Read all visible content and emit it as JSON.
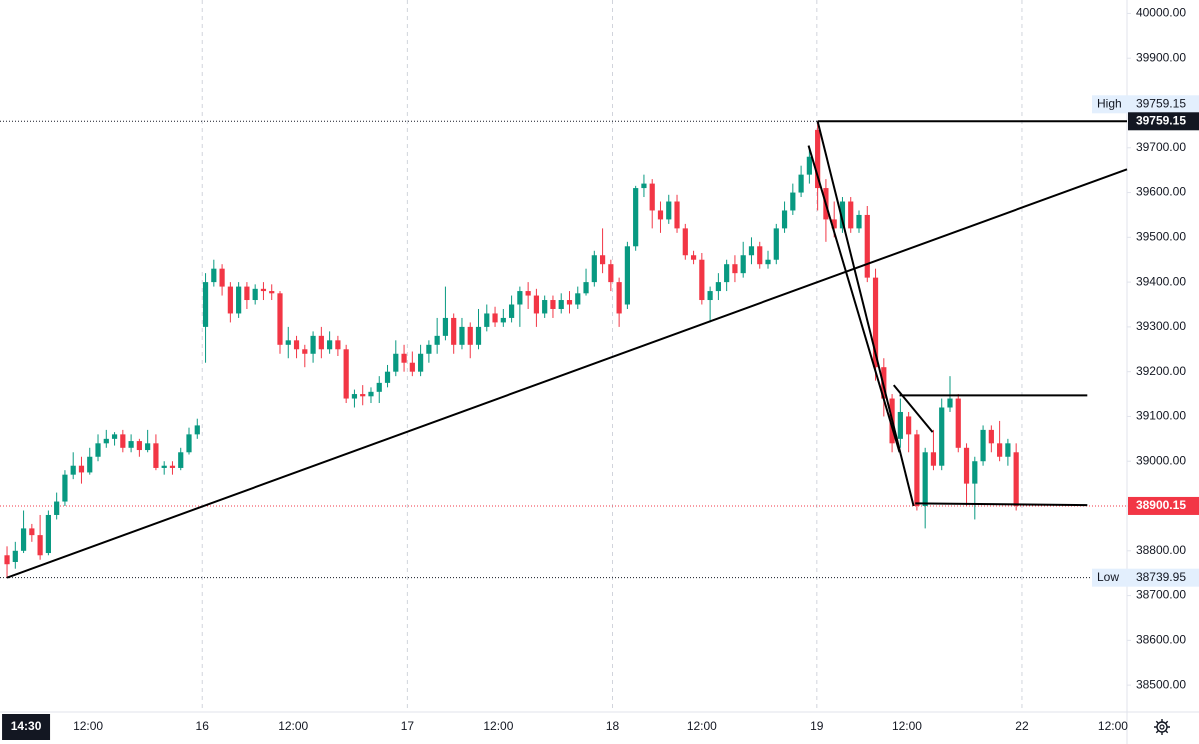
{
  "chart_data": {
    "type": "candlestick",
    "up_color": "#089981",
    "down_color": "#f23645",
    "xlim": [
      -0.85,
      135.4
    ],
    "ylim": [
      38440,
      40030
    ],
    "xticks": [
      {
        "value": 2.3,
        "label": "14:30"
      },
      {
        "value": 9.8,
        "label": "12:00"
      },
      {
        "value": 23.6,
        "label": "16"
      },
      {
        "value": 34.6,
        "label": "12:00"
      },
      {
        "value": 48.4,
        "label": "17"
      },
      {
        "value": 59.4,
        "label": "12:00"
      },
      {
        "value": 73.2,
        "label": "18"
      },
      {
        "value": 84.0,
        "label": "12:00"
      },
      {
        "value": 97.9,
        "label": "19"
      },
      {
        "value": 108.8,
        "label": "12:00"
      },
      {
        "value": 122.7,
        "label": "22"
      },
      {
        "value": 133.7,
        "label": "12:00"
      }
    ],
    "yticks": [
      {
        "value": 38500,
        "label": "38500.00"
      },
      {
        "value": 38600,
        "label": "38600.00"
      },
      {
        "value": 38700,
        "label": "38700.00"
      },
      {
        "value": 38800,
        "label": "38800.00"
      },
      {
        "value": 38900,
        "label": "38900.00"
      },
      {
        "value": 39000,
        "label": "39000.00"
      },
      {
        "value": 39100,
        "label": "39100.00"
      },
      {
        "value": 39200,
        "label": "39200.00"
      },
      {
        "value": 39300,
        "label": "39300.00"
      },
      {
        "value": 39400,
        "label": "39400.00"
      },
      {
        "value": 39500,
        "label": "39500.00"
      },
      {
        "value": 39600,
        "label": "39600.00"
      },
      {
        "value": 39700,
        "label": "39700.00"
      },
      {
        "value": 39800,
        "label": "39800.00"
      },
      {
        "value": 39900,
        "label": "39900.00"
      },
      {
        "value": 40000,
        "label": "40000.00"
      }
    ],
    "high": {
      "label": "High",
      "value": 39759.15
    },
    "low": {
      "label": "Low",
      "value": 38739.95
    },
    "last_price": 38900.15,
    "ohlc": [
      [
        38790,
        38810,
        38739.95,
        38770
      ],
      [
        38775,
        38820,
        38760,
        38800
      ],
      [
        38800,
        38890,
        38795,
        38850
      ],
      [
        38850,
        38860,
        38820,
        38835
      ],
      [
        38835,
        38880,
        38780,
        38790
      ],
      [
        38795,
        38890,
        38790,
        38880
      ],
      [
        38880,
        38930,
        38870,
        38910
      ],
      [
        38910,
        38980,
        38900,
        38970
      ],
      [
        38970,
        39020,
        38960,
        38990
      ],
      [
        38990,
        39010,
        38950,
        38975
      ],
      [
        38975,
        39030,
        38970,
        39010
      ],
      [
        39010,
        39060,
        39000,
        39040
      ],
      [
        39040,
        39070,
        39030,
        39050
      ],
      [
        39050,
        39065,
        39035,
        39060
      ],
      [
        39060,
        39070,
        39020,
        39030
      ],
      [
        39030,
        39060,
        39020,
        39045
      ],
      [
        39045,
        39050,
        39010,
        39025
      ],
      [
        39025,
        39070,
        39020,
        39040
      ],
      [
        39040,
        39060,
        38980,
        38985
      ],
      [
        38985,
        39000,
        38970,
        38990
      ],
      [
        38990,
        39000,
        38970,
        38985
      ],
      [
        38985,
        39030,
        38980,
        39020
      ],
      [
        39020,
        39075,
        39015,
        39060
      ],
      [
        39060,
        39095,
        39050,
        39080
      ],
      [
        39300,
        39420,
        39220,
        39400
      ],
      [
        39400,
        39450,
        39390,
        39430
      ],
      [
        39430,
        39440,
        39370,
        39390
      ],
      [
        39390,
        39400,
        39310,
        39330
      ],
      [
        39330,
        39400,
        39320,
        39390
      ],
      [
        39390,
        39400,
        39340,
        39360
      ],
      [
        39360,
        39395,
        39350,
        39385
      ],
      [
        39385,
        39400,
        39360,
        39380
      ],
      [
        39380,
        39395,
        39360,
        39375
      ],
      [
        39375,
        39380,
        39240,
        39260
      ],
      [
        39260,
        39300,
        39230,
        39270
      ],
      [
        39270,
        39280,
        39230,
        39250
      ],
      [
        39250,
        39260,
        39210,
        39240
      ],
      [
        39240,
        39290,
        39220,
        39280
      ],
      [
        39280,
        39300,
        39230,
        39250
      ],
      [
        39250,
        39290,
        39240,
        39270
      ],
      [
        39270,
        39280,
        39235,
        39250
      ],
      [
        39250,
        39260,
        39130,
        39140
      ],
      [
        39140,
        39160,
        39120,
        39150
      ],
      [
        39150,
        39170,
        39125,
        39145
      ],
      [
        39145,
        39165,
        39130,
        39155
      ],
      [
        39155,
        39190,
        39130,
        39175
      ],
      [
        39175,
        39215,
        39165,
        39200
      ],
      [
        39200,
        39270,
        39190,
        39240
      ],
      [
        39240,
        39260,
        39200,
        39220
      ],
      [
        39220,
        39245,
        39190,
        39200
      ],
      [
        39200,
        39260,
        39190,
        39240
      ],
      [
        39240,
        39270,
        39220,
        39260
      ],
      [
        39260,
        39320,
        39240,
        39280
      ],
      [
        39280,
        39390,
        39270,
        39320
      ],
      [
        39320,
        39330,
        39240,
        39260
      ],
      [
        39260,
        39320,
        39250,
        39300
      ],
      [
        39300,
        39310,
        39230,
        39260
      ],
      [
        39260,
        39340,
        39250,
        39300
      ],
      [
        39300,
        39350,
        39290,
        39330
      ],
      [
        39330,
        39345,
        39300,
        39310
      ],
      [
        39310,
        39340,
        39300,
        39320
      ],
      [
        39320,
        39370,
        39310,
        39350
      ],
      [
        39350,
        39390,
        39300,
        39380
      ],
      [
        39380,
        39400,
        39340,
        39370
      ],
      [
        39370,
        39385,
        39300,
        39330
      ],
      [
        39330,
        39370,
        39320,
        39360
      ],
      [
        39360,
        39370,
        39320,
        39340
      ],
      [
        39340,
        39375,
        39330,
        39360
      ],
      [
        39360,
        39380,
        39330,
        39350
      ],
      [
        39350,
        39390,
        39340,
        39375
      ],
      [
        39375,
        39430,
        39370,
        39400
      ],
      [
        39400,
        39470,
        39390,
        39460
      ],
      [
        39460,
        39520,
        39420,
        39440
      ],
      [
        39440,
        39450,
        39380,
        39400
      ],
      [
        39400,
        39410,
        39300,
        39330
      ],
      [
        39350,
        39490,
        39340,
        39480
      ],
      [
        39480,
        39615,
        39470,
        39610
      ],
      [
        39610,
        39640,
        39590,
        39620
      ],
      [
        39620,
        39630,
        39520,
        39560
      ],
      [
        39560,
        39580,
        39510,
        39540
      ],
      [
        39540,
        39595,
        39530,
        39580
      ],
      [
        39580,
        39595,
        39510,
        39520
      ],
      [
        39520,
        39530,
        39450,
        39460
      ],
      [
        39460,
        39470,
        39440,
        39450
      ],
      [
        39450,
        39465,
        39350,
        39360
      ],
      [
        39360,
        39390,
        39310,
        39380
      ],
      [
        39380,
        39420,
        39360,
        39400
      ],
      [
        39400,
        39450,
        39380,
        39440
      ],
      [
        39440,
        39460,
        39400,
        39420
      ],
      [
        39420,
        39490,
        39410,
        39460
      ],
      [
        39460,
        39500,
        39440,
        39480
      ],
      [
        39480,
        39490,
        39430,
        39440
      ],
      [
        39440,
        39470,
        39430,
        39450
      ],
      [
        39450,
        39530,
        39440,
        39520
      ],
      [
        39520,
        39580,
        39510,
        39560
      ],
      [
        39560,
        39620,
        39550,
        39600
      ],
      [
        39600,
        39660,
        39590,
        39640
      ],
      [
        39640,
        39700,
        39620,
        39680
      ],
      [
        39740,
        39759.15,
        39560,
        39610
      ],
      [
        39610,
        39630,
        39490,
        39540
      ],
      [
        39540,
        39580,
        39500,
        39520
      ],
      [
        39520,
        39590,
        39510,
        39580
      ],
      [
        39580,
        39590,
        39510,
        39520
      ],
      [
        39520,
        39560,
        39510,
        39550
      ],
      [
        39550,
        39570,
        39400,
        39410
      ],
      [
        39410,
        39430,
        39180,
        39210
      ],
      [
        39210,
        39230,
        39100,
        39140
      ],
      [
        39140,
        39150,
        39020,
        39040
      ],
      [
        39050,
        39140,
        39030,
        39110
      ],
      [
        39100,
        39110,
        39020,
        39060
      ],
      [
        39060,
        39070,
        38890,
        38900
      ],
      [
        38900,
        39030,
        38850,
        39020
      ],
      [
        39020,
        39070,
        38980,
        38990
      ],
      [
        38990,
        39140,
        38980,
        39120
      ],
      [
        39120,
        39190,
        39110,
        39140
      ],
      [
        39140,
        39150,
        39020,
        39030
      ],
      [
        39030,
        39040,
        38900,
        38950
      ],
      [
        38950,
        39010,
        38870,
        39000
      ],
      [
        39000,
        39080,
        38990,
        39070
      ],
      [
        39070,
        39080,
        39020,
        39040
      ],
      [
        39040,
        39090,
        39000,
        39010
      ],
      [
        39010,
        39050,
        38990,
        39040
      ],
      [
        39020,
        39040,
        38890,
        38900.15
      ]
    ],
    "drawings": [
      {
        "points": [
          [
            0,
            38739.95
          ],
          [
            135.4,
            39652
          ]
        ]
      },
      {
        "points": [
          [
            98,
            39759.15
          ],
          [
            135.4,
            39759.15
          ]
        ]
      },
      {
        "points": [
          [
            98,
            39759.15
          ],
          [
            109.6,
            38900
          ]
        ]
      },
      {
        "points": [
          [
            96.9,
            39705
          ],
          [
            107.9,
            39020
          ]
        ]
      },
      {
        "points": [
          [
            107.9,
            39147
          ],
          [
            130.6,
            39147
          ]
        ]
      },
      {
        "points": [
          [
            107.2,
            39170
          ],
          [
            111.9,
            39065
          ]
        ]
      },
      {
        "points": [
          [
            109.8,
            38906
          ],
          [
            130.6,
            38902
          ]
        ]
      }
    ]
  }
}
